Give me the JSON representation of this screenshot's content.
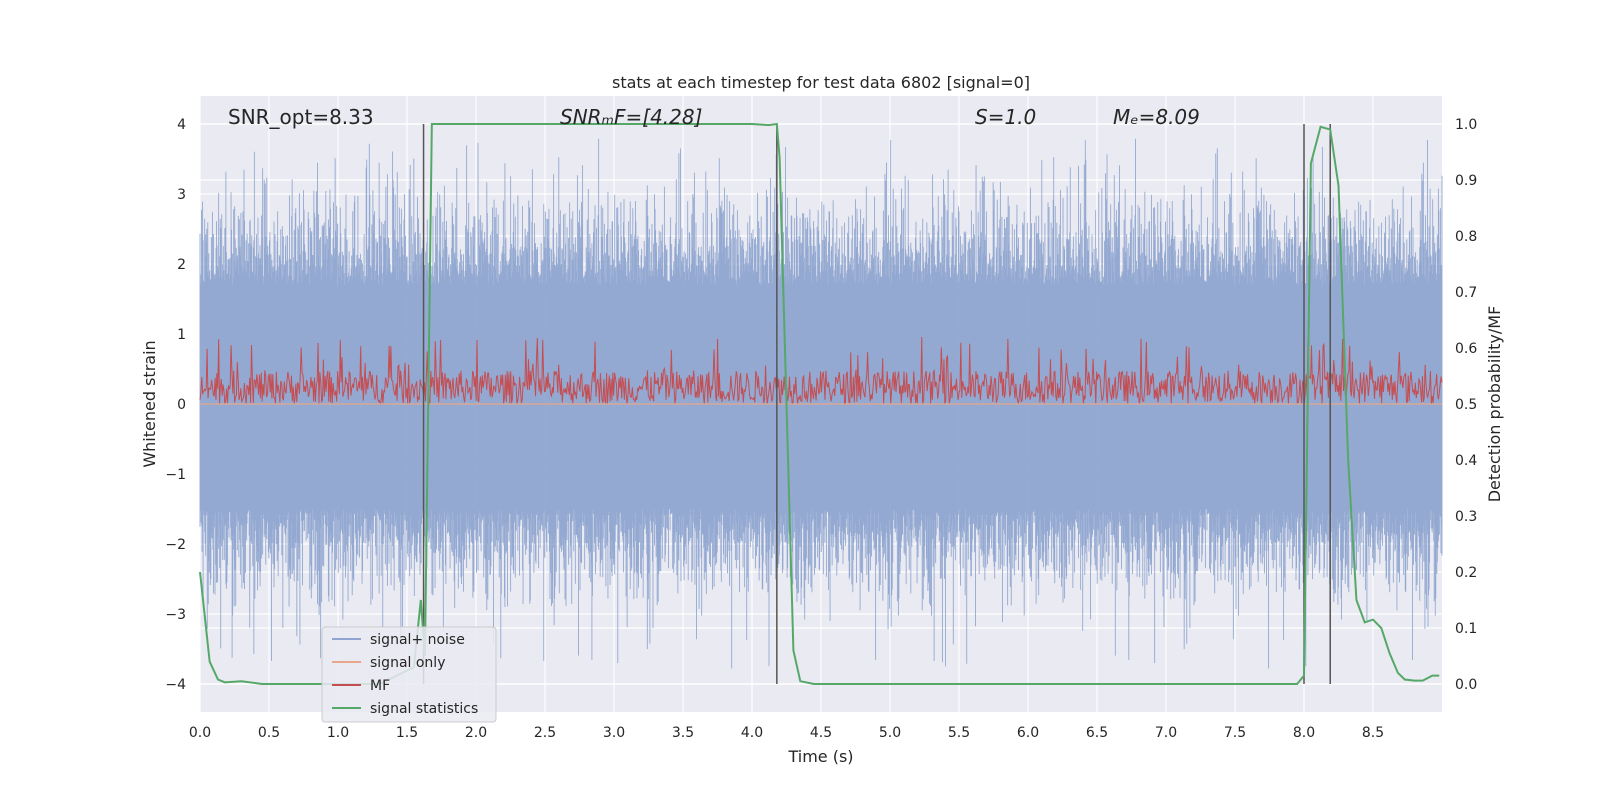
{
  "chart_data": {
    "type": "line",
    "title": "stats at each timestep for test data 6802 [signal=0]",
    "xlabel": "Time (s)",
    "ylabel_left": "Whitened strain",
    "ylabel_right": "Detection probability/MF",
    "xlim": [
      0,
      9.0
    ],
    "ylim_left": [
      -4.4,
      4.4
    ],
    "ylim_right": [
      -0.05,
      1.05
    ],
    "x_ticks": [
      "0.0",
      "0.5",
      "1.0",
      "1.5",
      "2.0",
      "2.5",
      "3.0",
      "3.5",
      "4.0",
      "4.5",
      "5.0",
      "5.5",
      "6.0",
      "6.5",
      "7.0",
      "7.5",
      "8.0",
      "8.5"
    ],
    "y_ticks_left": [
      "4",
      "3",
      "2",
      "1",
      "0",
      "−1",
      "−2",
      "−3",
      "−4"
    ],
    "y_ticks_right": [
      "1.0",
      "0.9",
      "0.8",
      "0.7",
      "0.6",
      "0.5",
      "0.4",
      "0.3",
      "0.2",
      "0.1",
      "0.0"
    ],
    "grid": true,
    "annotations": {
      "snr_opt": "SNR_opt=8.33",
      "snr_mf": "SNRₘF=[4.28]",
      "s": "S=1.0",
      "mc": "Mₑ=8.09"
    },
    "vertical_lines_x": [
      1.62,
      4.18,
      8.0,
      8.19
    ],
    "legend": {
      "placement": "lower-left",
      "entries": [
        "signal+ noise",
        "signal only",
        "MF",
        "signal statistics"
      ]
    },
    "series": [
      {
        "name": "signal+ noise",
        "color": "#8fa5cf",
        "axis": "left",
        "envelope": {
          "typical_low": -1.5,
          "typical_high": 1.7,
          "peak_low": -3.8,
          "peak_high": 3.8
        }
      },
      {
        "name": "signal only",
        "color": "#e8a68a",
        "axis": "left",
        "x": [
          0,
          9.0
        ],
        "y": [
          0,
          0
        ]
      },
      {
        "name": "MF",
        "color": "#c44e52",
        "axis": "right",
        "envelope": {
          "typical_low": 0.5,
          "typical_high": 0.56,
          "peak_high": 0.62
        }
      },
      {
        "name": "signal statistics",
        "color": "#55a868",
        "axis": "right",
        "x": [
          0.0,
          0.07,
          0.13,
          0.18,
          0.3,
          0.45,
          0.7,
          1.0,
          1.3,
          1.55,
          1.6,
          1.63,
          1.68,
          2.0,
          3.0,
          4.0,
          4.12,
          4.18,
          4.2,
          4.25,
          4.3,
          4.35,
          4.45,
          5.0,
          6.0,
          7.0,
          7.95,
          8.0,
          8.05,
          8.12,
          8.19,
          8.25,
          8.32,
          8.38,
          8.44,
          8.5,
          8.56,
          8.62,
          8.68,
          8.73,
          8.8,
          8.86,
          8.93,
          8.98
        ],
        "y": [
          0.2,
          0.04,
          0.008,
          0.003,
          0.005,
          0.0,
          0.0,
          0.0,
          0.0,
          0.03,
          0.15,
          0.05,
          1.0,
          1.0,
          1.0,
          1.0,
          0.998,
          1.0,
          0.94,
          0.5,
          0.06,
          0.005,
          0.0,
          0.0,
          0.0,
          0.0,
          0.0,
          0.015,
          0.93,
          0.995,
          0.99,
          0.89,
          0.4,
          0.15,
          0.11,
          0.115,
          0.1,
          0.055,
          0.02,
          0.008,
          0.006,
          0.006,
          0.015,
          0.015
        ]
      }
    ]
  }
}
